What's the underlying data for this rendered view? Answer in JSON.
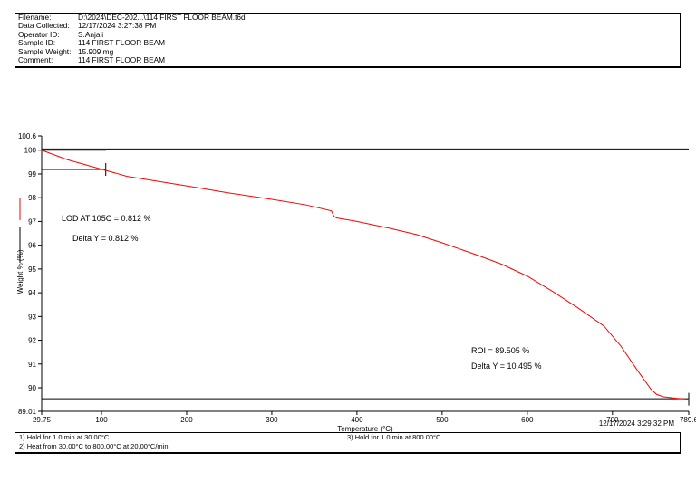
{
  "info": [
    {
      "key": "Filename:",
      "value": "D:\\2024\\DEC-202...\\114 FIRST FLOOR BEAM.t6d"
    },
    {
      "key": "Data Collected:",
      "value": "12/17/2024 3:27:38 PM"
    },
    {
      "key": "Operator ID:",
      "value": "S.Anjali"
    },
    {
      "key": "Sample ID:",
      "value": "114 FIRST FLOOR BEAM"
    },
    {
      "key": "Sample Weight:",
      "value": "15.909 mg"
    },
    {
      "key": "Comment:",
      "value": "114 FIRST FLOOR BEAM"
    }
  ],
  "chart_data": {
    "type": "line",
    "xlabel": "Temperature (°C)",
    "ylabel": "Weight % (%)",
    "xlim": [
      29.75,
      789.6
    ],
    "ylim": [
      89.01,
      100.6
    ],
    "xticks": [
      "29.75",
      "100",
      "200",
      "300",
      "400",
      "500",
      "600",
      "700",
      "789.6"
    ],
    "yticks": [
      "100.6",
      "100",
      "99",
      "98",
      "97",
      "96",
      "95",
      "94",
      "93",
      "92",
      "91",
      "90",
      "89.01"
    ],
    "series": [
      {
        "color": "#ff0000",
        "x": [
          29.75,
          60,
          100,
          130,
          200,
          250,
          300,
          340,
          370,
          373,
          376,
          400,
          440,
          470,
          500,
          540,
          570,
          600,
          630,
          660,
          690,
          710,
          730,
          745,
          752,
          760,
          775,
          789.6
        ],
        "y": [
          100,
          99.6,
          99.2,
          98.9,
          98.5,
          98.2,
          97.93,
          97.7,
          97.45,
          97.22,
          97.15,
          97.0,
          96.7,
          96.45,
          96.1,
          95.6,
          95.2,
          94.7,
          94.05,
          93.35,
          92.6,
          91.75,
          90.7,
          89.95,
          89.72,
          89.62,
          89.56,
          89.52
        ]
      }
    ],
    "reference_lines": [
      100.05,
      89.54
    ],
    "annotations": [
      {
        "text": "LOD AT 105C = 0.812 %"
      },
      {
        "text": "Delta Y = 0.812 %"
      },
      {
        "text": "ROI = 89.505 %"
      },
      {
        "text": "Delta Y = 10.495 %"
      }
    ],
    "markers": [
      {
        "x": 29.75,
        "y": 100
      },
      {
        "x": 105,
        "y": 99.188
      }
    ],
    "grid": false
  },
  "timestamp": "12/17/2024 3:29:32 PM",
  "method": {
    "s1": "1)  Hold for 1.0 min at 30.00°C",
    "s2": "2)  Heat from 30.00°C to 800.00°C at 20.00°C/min",
    "s3": "3)    Hold for 1.0 min at 800.00°C"
  }
}
